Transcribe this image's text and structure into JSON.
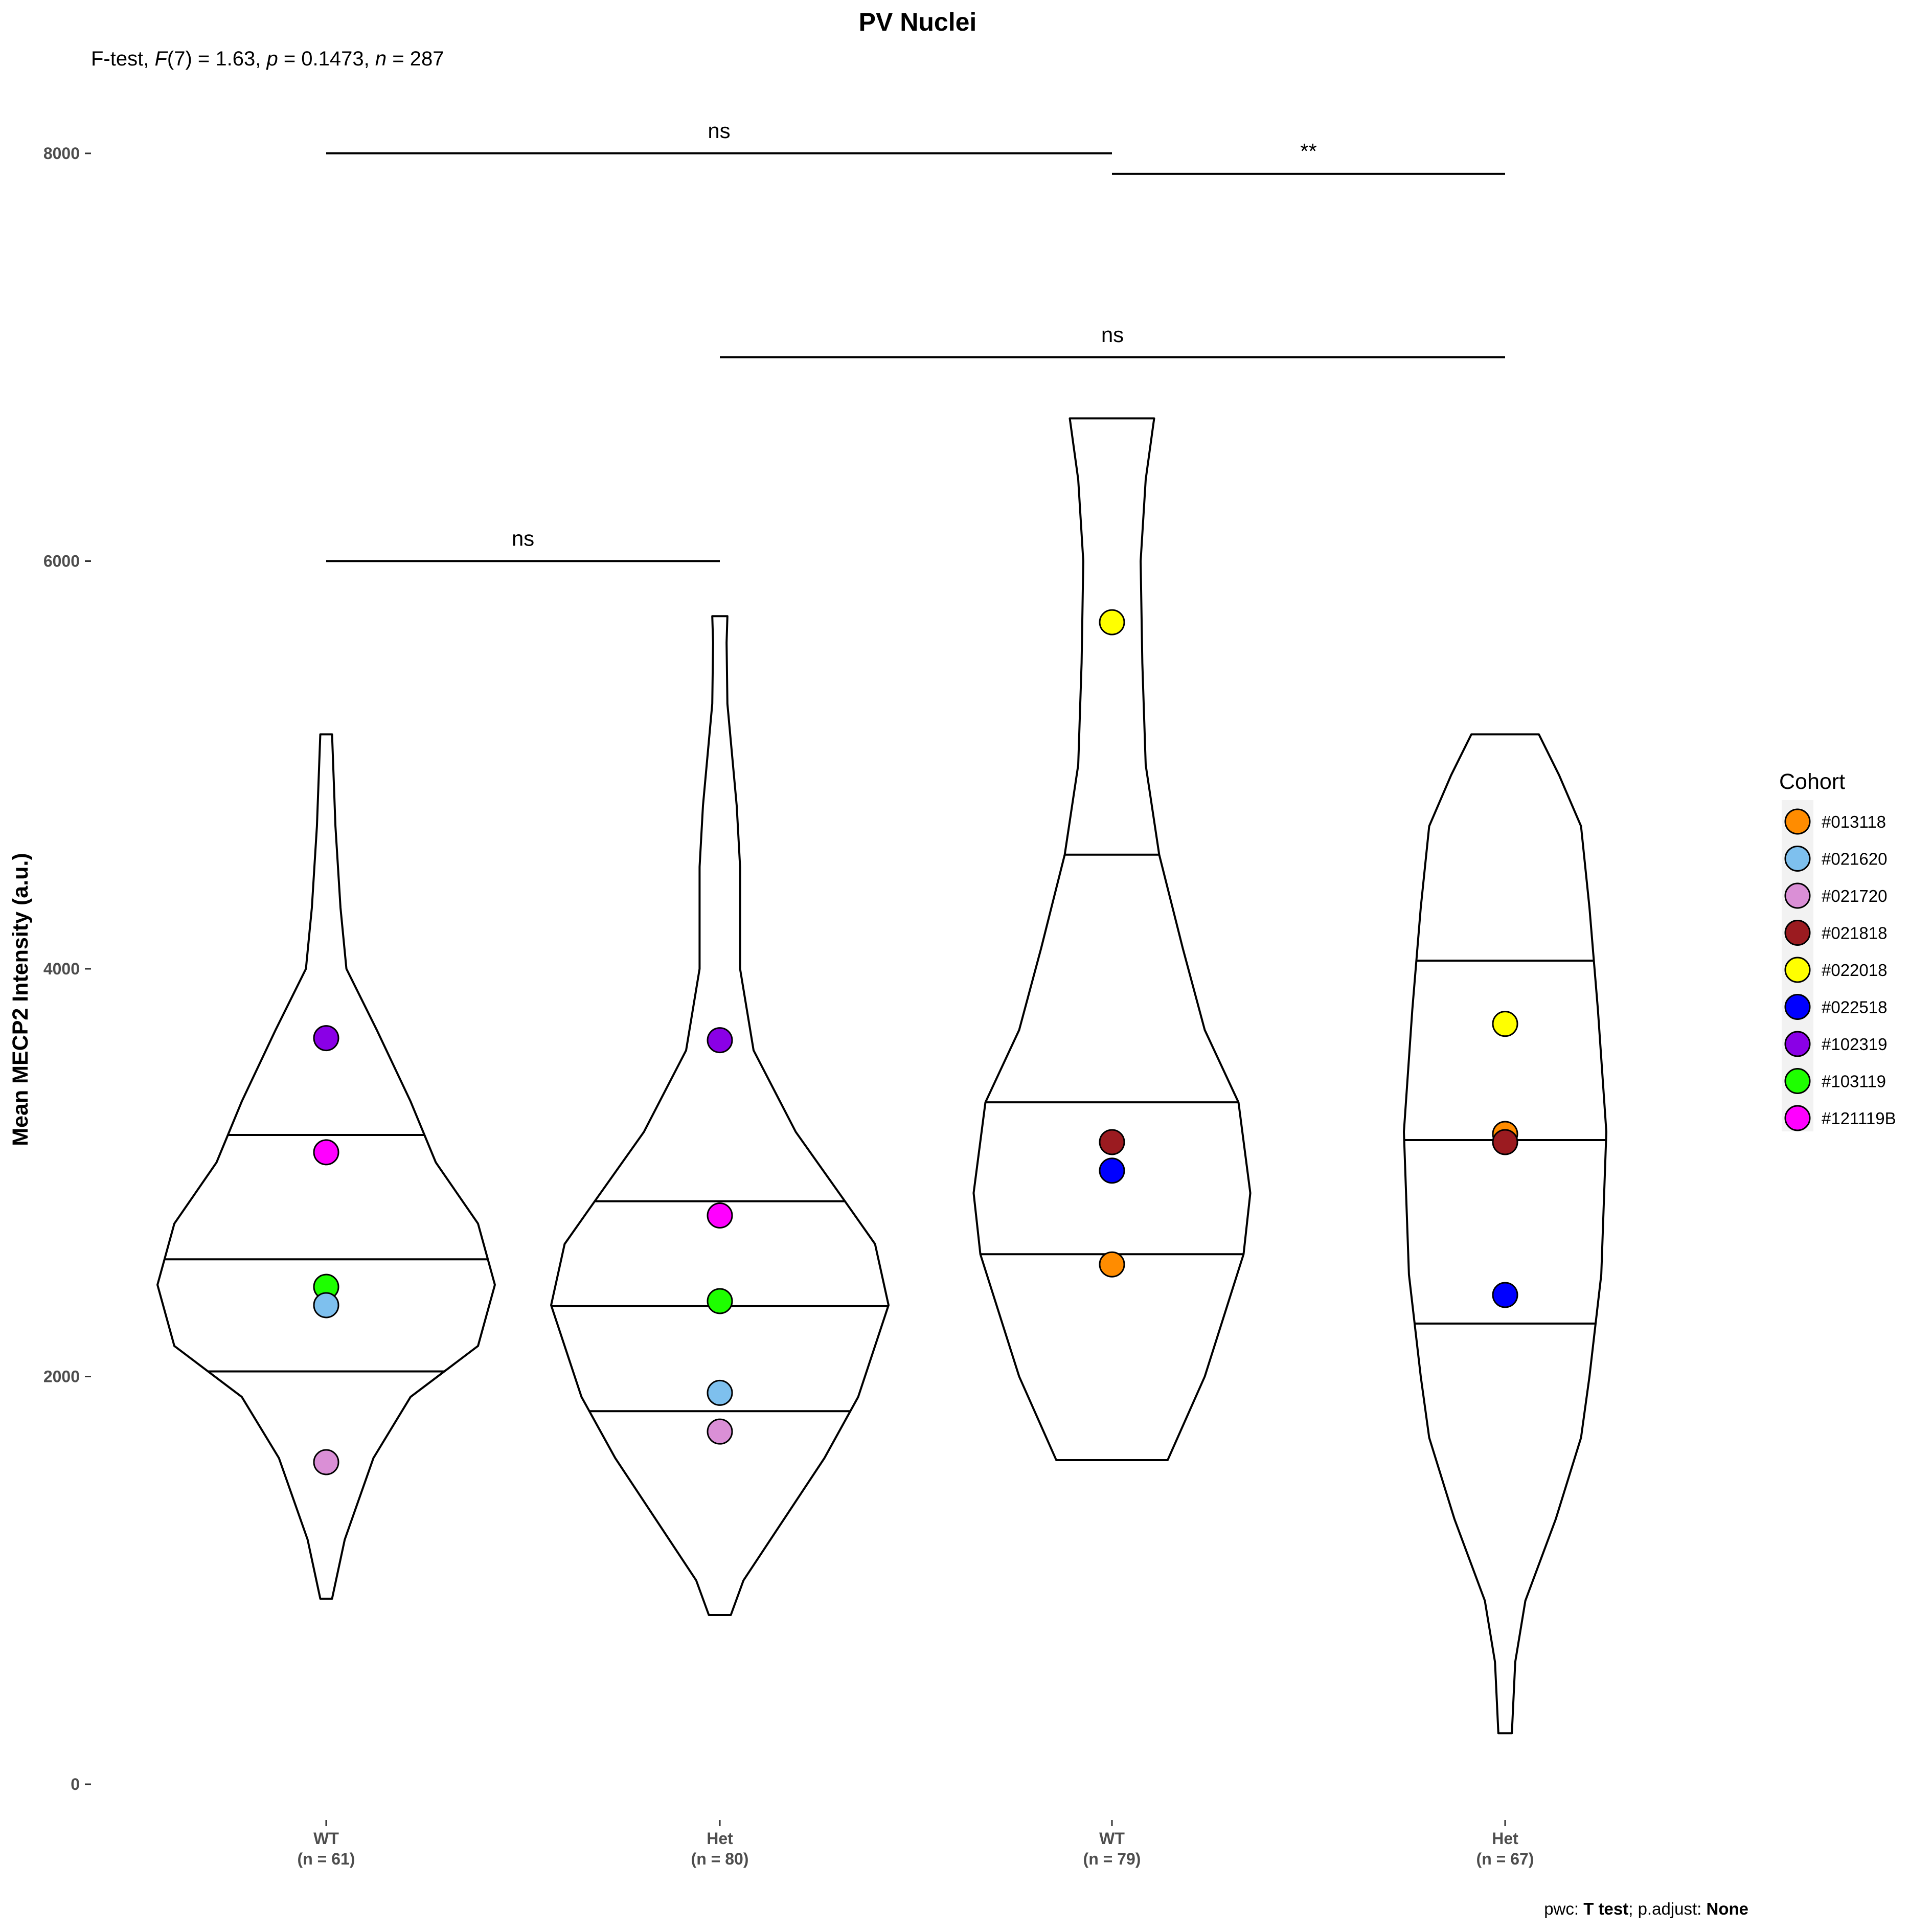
{
  "chart_data": {
    "type": "violin",
    "title": "PV Nuclei",
    "subtitle": {
      "prefix": "F-test, ",
      "stat_symbol": "F",
      "df": "(7)",
      "stat_value": " = 1.63, ",
      "p_symbol": "p",
      "p_value": " = 0.1473, ",
      "n_symbol": "n",
      "n_value": " = 287"
    },
    "ylabel": "Mean MECP2 Intensity (a.u.)",
    "xlabel": "",
    "ylim": [
      -100,
      8400
    ],
    "yticks": [
      {
        "value": 0,
        "label": "0"
      },
      {
        "value": 2000,
        "label": "2000"
      },
      {
        "value": 4000,
        "label": "4000"
      },
      {
        "value": 6000,
        "label": "6000"
      },
      {
        "value": 8000,
        "label": "8000"
      }
    ],
    "grid": false,
    "legend": {
      "title": "Cohort",
      "placement": "right",
      "entries": [
        {
          "label": "#013118",
          "color": "#FF8C00"
        },
        {
          "label": "#021620",
          "color": "#7EC0EE"
        },
        {
          "label": "#021720",
          "color": "#DA8FD6"
        },
        {
          "label": "#021818",
          "color": "#9B1B20"
        },
        {
          "label": "#022018",
          "color": "#FFFF00"
        },
        {
          "label": "#022518",
          "color": "#0000FF"
        },
        {
          "label": "#102319",
          "color": "#8A00E6"
        },
        {
          "label": "#103119",
          "color": "#1EFF00"
        },
        {
          "label": "#121119B",
          "color": "#FF00FF"
        }
      ]
    },
    "groups": [
      {
        "name": "WT",
        "n_label": "(n = 61)",
        "quantiles": [
          2025,
          2575,
          3185
        ],
        "profile": [
          [
            910,
            0.035
          ],
          [
            1200,
            0.11
          ],
          [
            1600,
            0.28
          ],
          [
            1900,
            0.5
          ],
          [
            2150,
            0.9
          ],
          [
            2450,
            1.0
          ],
          [
            2750,
            0.9
          ],
          [
            3050,
            0.65
          ],
          [
            3350,
            0.5
          ],
          [
            3700,
            0.3
          ],
          [
            4000,
            0.12
          ],
          [
            4300,
            0.085
          ],
          [
            4700,
            0.055
          ],
          [
            5150,
            0.035
          ]
        ],
        "points": [
          {
            "cohort": "#102319",
            "value": 3660,
            "color": "#8A00E6"
          },
          {
            "cohort": "#121119B",
            "value": 3100,
            "color": "#FF00FF"
          },
          {
            "cohort": "#103119",
            "value": 2440,
            "color": "#1EFF00"
          },
          {
            "cohort": "#021620",
            "value": 2350,
            "color": "#7EC0EE"
          },
          {
            "cohort": "#021720",
            "value": 1580,
            "color": "#DA8FD6"
          }
        ]
      },
      {
        "name": "Het",
        "n_label": "(n = 80)",
        "quantiles": [
          1830,
          2345,
          2860
        ],
        "profile": [
          [
            830,
            0.065
          ],
          [
            1000,
            0.14
          ],
          [
            1300,
            0.38
          ],
          [
            1600,
            0.62
          ],
          [
            1900,
            0.82
          ],
          [
            2350,
            1.0
          ],
          [
            2650,
            0.92
          ],
          [
            2850,
            0.75
          ],
          [
            3200,
            0.45
          ],
          [
            3600,
            0.2
          ],
          [
            4000,
            0.12
          ],
          [
            4500,
            0.12
          ],
          [
            4800,
            0.1
          ],
          [
            5300,
            0.045
          ],
          [
            5600,
            0.04
          ],
          [
            5730,
            0.045
          ]
        ],
        "points": [
          {
            "cohort": "#102319",
            "value": 3650,
            "color": "#8A00E6"
          },
          {
            "cohort": "#121119B",
            "value": 2790,
            "color": "#FF00FF"
          },
          {
            "cohort": "#103119",
            "value": 2370,
            "color": "#1EFF00"
          },
          {
            "cohort": "#021620",
            "value": 1920,
            "color": "#7EC0EE"
          },
          {
            "cohort": "#021720",
            "value": 1730,
            "color": "#DA8FD6"
          }
        ]
      },
      {
        "name": "WT",
        "n_label": "(n = 79)",
        "quantiles": [
          2600,
          3345,
          4560
        ],
        "profile": [
          [
            1590,
            0.33
          ],
          [
            2000,
            0.55
          ],
          [
            2600,
            0.78
          ],
          [
            2900,
            0.82
          ],
          [
            3345,
            0.75
          ],
          [
            3700,
            0.55
          ],
          [
            4100,
            0.42
          ],
          [
            4560,
            0.28
          ],
          [
            5000,
            0.2
          ],
          [
            5500,
            0.18
          ],
          [
            6000,
            0.17
          ],
          [
            6400,
            0.2
          ],
          [
            6700,
            0.25
          ]
        ],
        "points": [
          {
            "cohort": "#022018",
            "value": 5700,
            "color": "#FFFF00"
          },
          {
            "cohort": "#021818",
            "value": 3150,
            "color": "#9B1B20"
          },
          {
            "cohort": "#022518",
            "value": 3010,
            "color": "#0000FF"
          },
          {
            "cohort": "#013118",
            "value": 2550,
            "color": "#FF8C00"
          }
        ]
      },
      {
        "name": "Het",
        "n_label": "(n = 67)",
        "quantiles": [
          2260,
          3160,
          4040
        ],
        "profile": [
          [
            250,
            0.04
          ],
          [
            600,
            0.06
          ],
          [
            900,
            0.12
          ],
          [
            1300,
            0.3
          ],
          [
            1700,
            0.45
          ],
          [
            2000,
            0.5
          ],
          [
            2500,
            0.57
          ],
          [
            3200,
            0.6
          ],
          [
            3800,
            0.55
          ],
          [
            4300,
            0.5
          ],
          [
            4700,
            0.45
          ],
          [
            4950,
            0.32
          ],
          [
            5150,
            0.2
          ]
        ],
        "points": [
          {
            "cohort": "#022018",
            "value": 3730,
            "color": "#FFFF00"
          },
          {
            "cohort": "#013118",
            "value": 3190,
            "color": "#FF8C00"
          },
          {
            "cohort": "#021818",
            "value": 3150,
            "color": "#9B1B20"
          },
          {
            "cohort": "#022518",
            "value": 2400,
            "color": "#0000FF"
          }
        ]
      }
    ],
    "comparisons": [
      {
        "from": 0,
        "to": 1,
        "y": 6000,
        "label": "ns"
      },
      {
        "from": 1,
        "to": 3,
        "y": 7000,
        "label": "ns"
      },
      {
        "from": 0,
        "to": 2,
        "y": 8000,
        "label": "ns"
      },
      {
        "from": 2,
        "to": 3,
        "y": 7900,
        "label": "**"
      }
    ],
    "caption": {
      "prefix": "pwc: ",
      "test": "T test",
      "mid": "; p.adjust: ",
      "adjust": "None"
    }
  }
}
